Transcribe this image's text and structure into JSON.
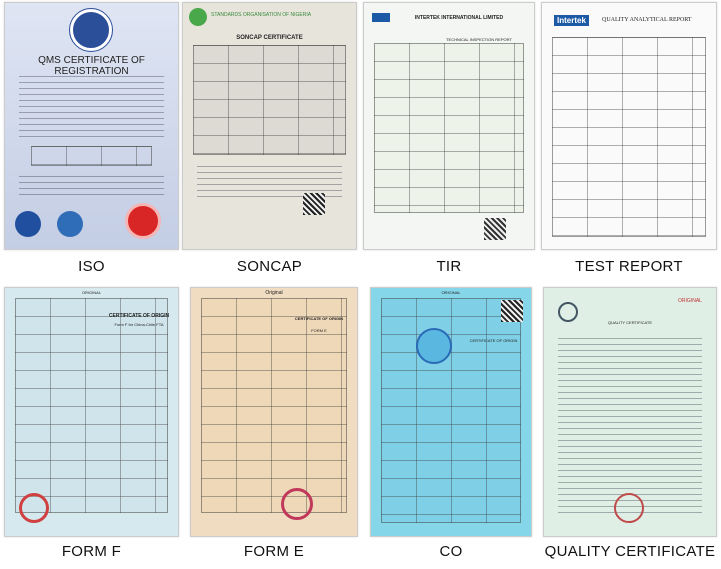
{
  "items": [
    {
      "label": "ISO",
      "doc_title": "QMS CERTIFICATE OF REGISTRATION",
      "bg": "#cdd6ea"
    },
    {
      "label": "SONCAP",
      "doc_title": "SONCAP CERTIFICATE",
      "header": "STANDARDS ORGANISATION OF NIGERIA",
      "bg": "#e7e4dc"
    },
    {
      "label": "TIR",
      "doc_title": "INTERTEK INTERNATIONAL LIMITED",
      "sub": "TECHNICAL INSPECTION REPORT",
      "bg": "#f3f6f2"
    },
    {
      "label": "TEST REPORT",
      "doc_title": "QUALITY ANALYTICAL REPORT",
      "brand": "Intertek",
      "bg": "#fafafa"
    },
    {
      "label": "FORM F",
      "doc_title": "CERTIFICATE OF ORIGIN",
      "sub": "Form F for China-Chile FTA",
      "header": "ORIGINAL",
      "bg": "#d6e9ef"
    },
    {
      "label": "FORM E",
      "doc_title": "CERTIFICATE OF ORIGIN",
      "sub": "FORM E",
      "header": "Original",
      "bg": "#f0dcc0"
    },
    {
      "label": "CO",
      "doc_title": "CERTIFICATE OF ORIGIN",
      "header": "ORIGINAL",
      "bg": "#86d6ea"
    },
    {
      "label": "QUALITY CERTIFICATE",
      "doc_title": "QUALITY CERTIFICATE",
      "header": "ORIGINAL",
      "bg": "#dfefe6"
    }
  ]
}
